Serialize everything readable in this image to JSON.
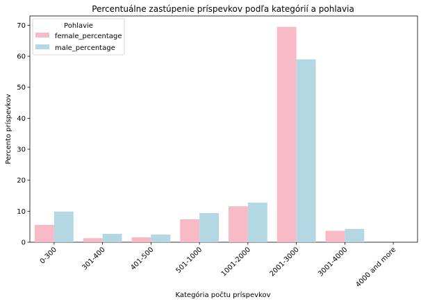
{
  "chart_data": {
    "type": "bar",
    "title": "Percentuálne zastúpenie príspevkov podľa kategórií a pohlavia",
    "xlabel": "Kategória počtu príspevkov",
    "ylabel": "Percento príspevkov",
    "categories": [
      "0-300",
      "301-400",
      "401-500",
      "501-1000",
      "1001-2000",
      "2001-3000",
      "3001-4000",
      "4000 and more"
    ],
    "series": [
      {
        "name": "female_percentage",
        "color": "#f7bac6",
        "values": [
          5.6,
          1.3,
          1.6,
          7.4,
          11.6,
          69.5,
          3.7,
          0.0
        ]
      },
      {
        "name": "male_percentage",
        "color": "#b3d8e3",
        "values": [
          9.9,
          2.7,
          2.5,
          9.4,
          12.8,
          59.0,
          4.3,
          0.0
        ]
      }
    ],
    "ylim": [
      0,
      73
    ],
    "yticks": [
      0,
      10,
      20,
      30,
      40,
      50,
      60,
      70
    ],
    "legend": {
      "title": "Pohlavie",
      "position": "top-left"
    },
    "grid": false
  }
}
